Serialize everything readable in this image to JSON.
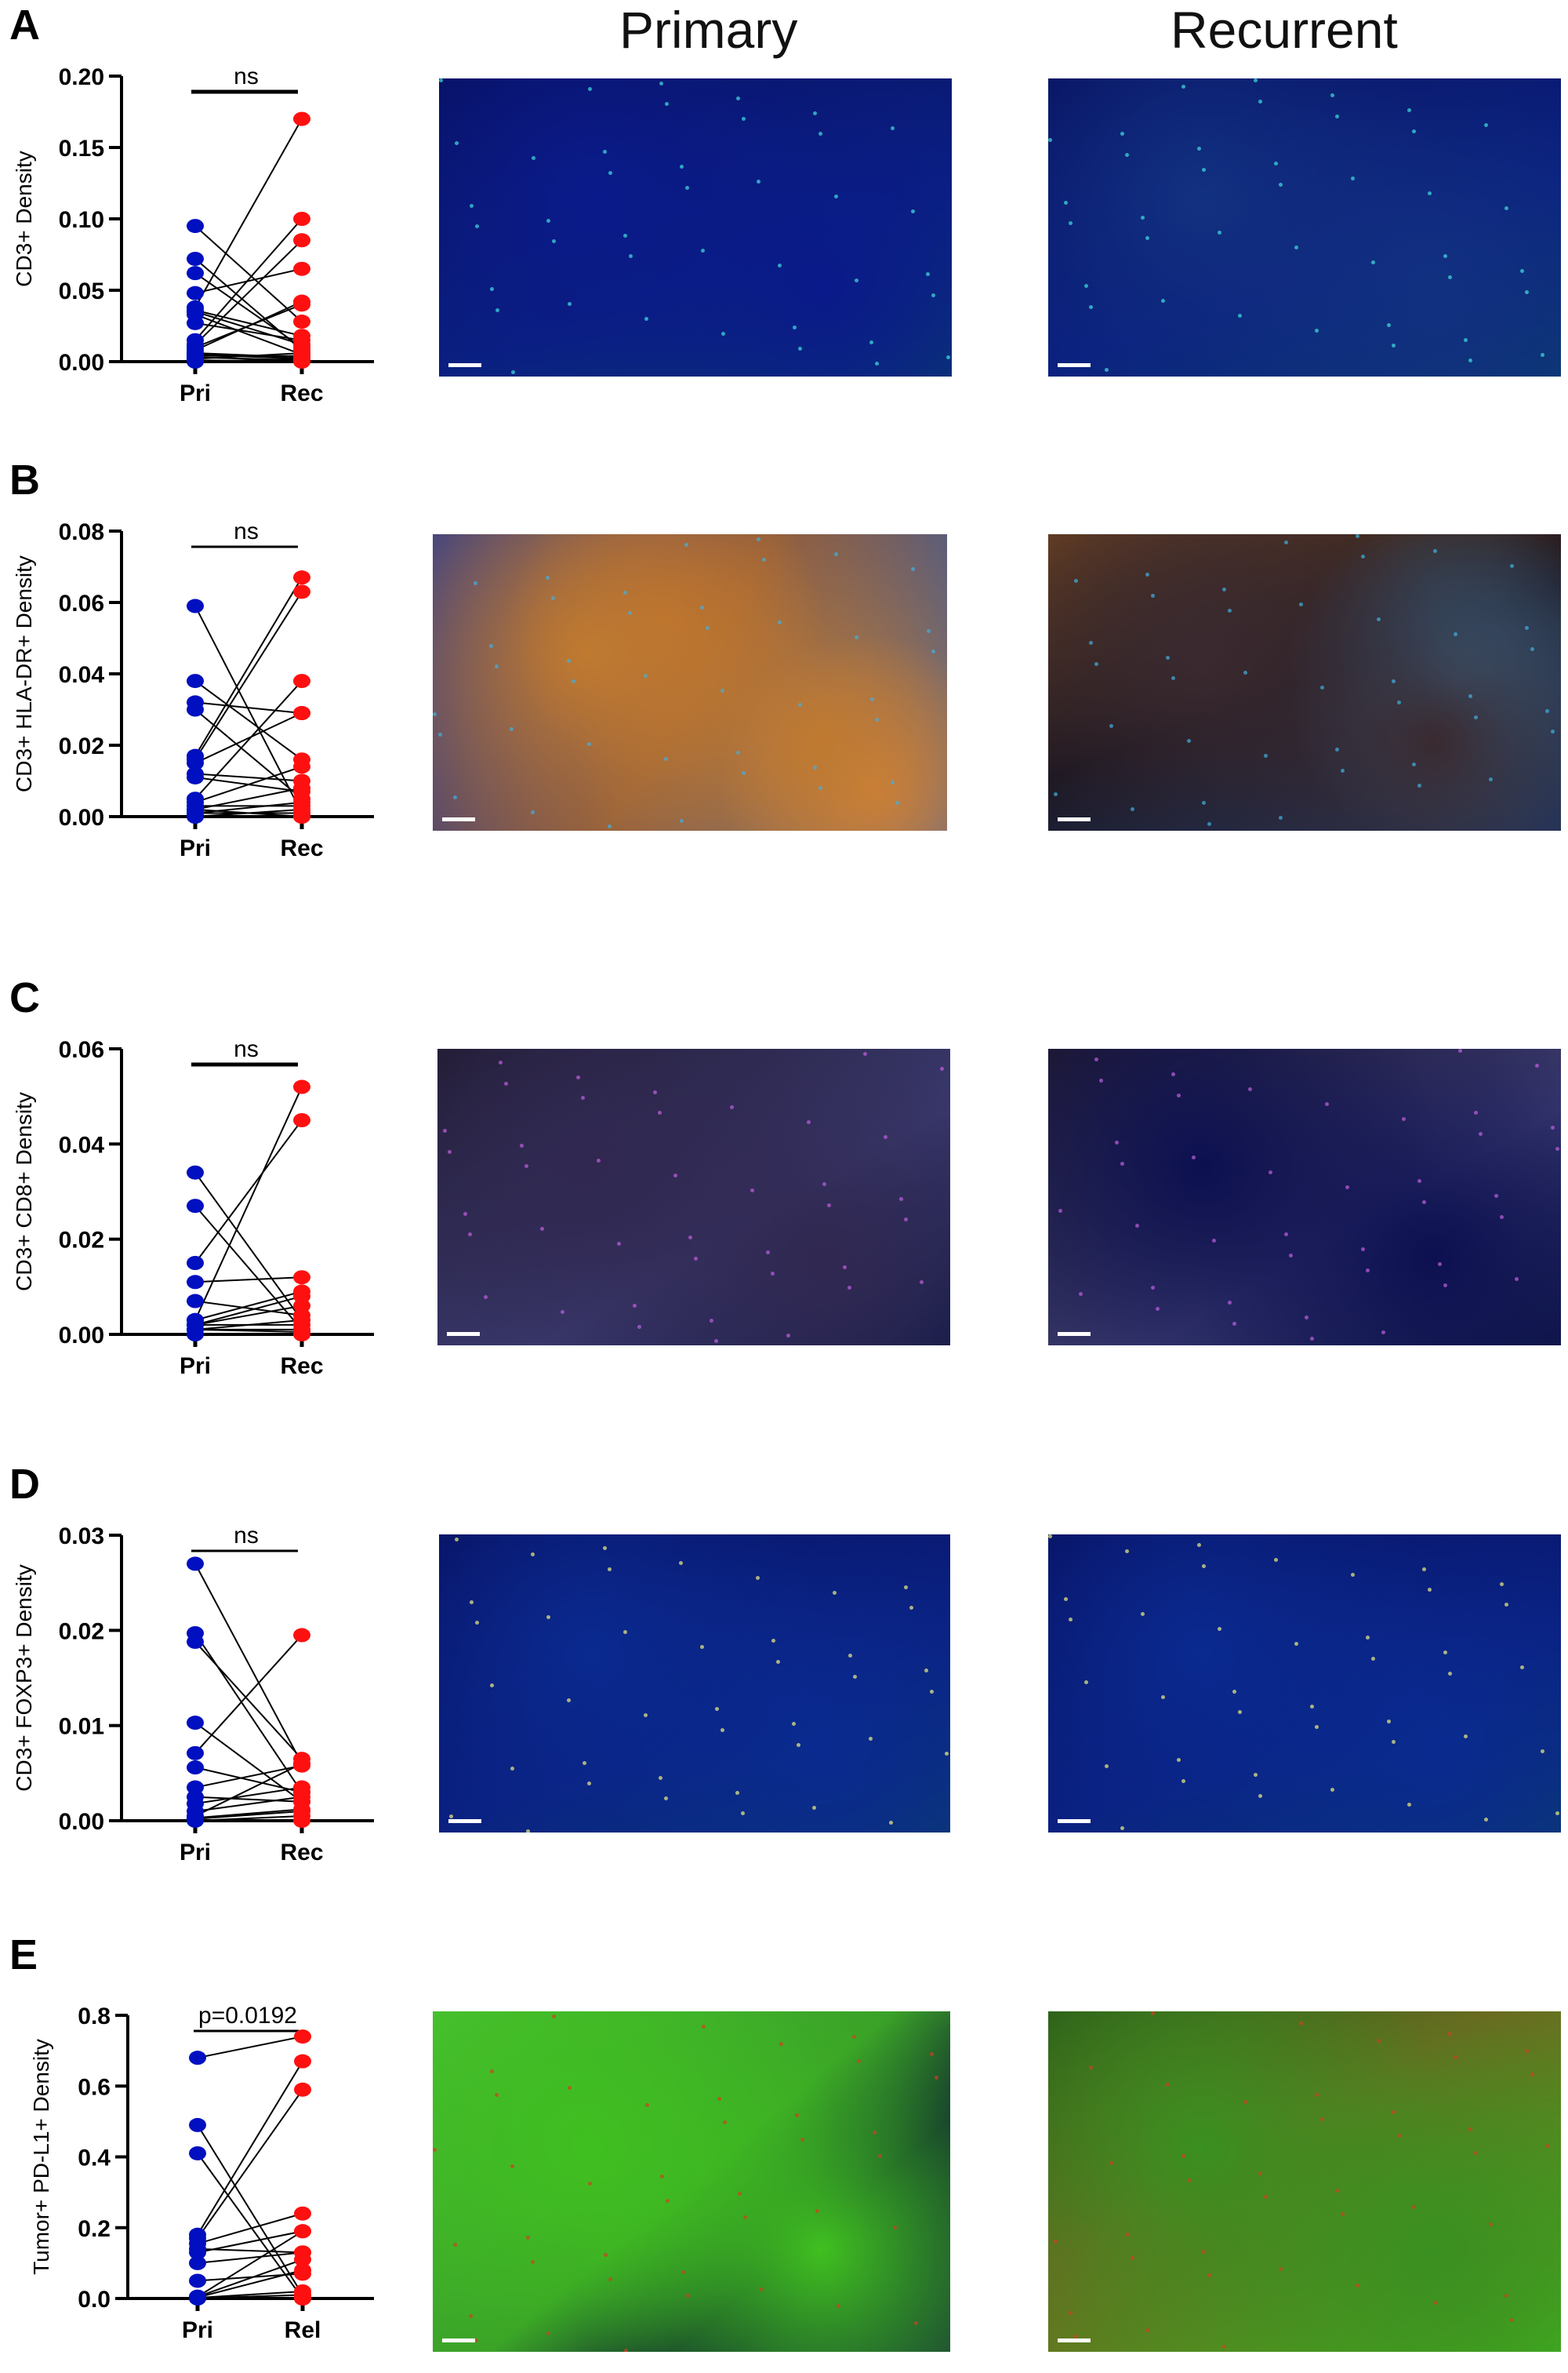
{
  "columns": {
    "primary": "Primary",
    "recurrent": "Recurrent"
  },
  "colors": {
    "primary_points": "#0010c0",
    "recurrent_points": "#ff1010",
    "lines": "#000000"
  },
  "chart_data": [
    {
      "type": "paired-scatter",
      "panel": "A",
      "ylabel": "CD3+ Density",
      "categories": [
        "Pri",
        "Rec"
      ],
      "ylim": [
        0,
        0.2
      ],
      "yticks": [
        "0.00",
        "0.05",
        "0.10",
        "0.15",
        "0.20"
      ],
      "significance": "ns",
      "pairs": [
        [
          0.095,
          0.028
        ],
        [
          0.072,
          0.008
        ],
        [
          0.062,
          0.01
        ],
        [
          0.048,
          0.065
        ],
        [
          0.038,
          0.17
        ],
        [
          0.036,
          0.018
        ],
        [
          0.035,
          0.012
        ],
        [
          0.033,
          0.005
        ],
        [
          0.027,
          0.015
        ],
        [
          0.015,
          0.1
        ],
        [
          0.012,
          0.085
        ],
        [
          0.01,
          0.04
        ],
        [
          0.008,
          0.042
        ],
        [
          0.006,
          0.003
        ],
        [
          0.005,
          0.002
        ],
        [
          0.004,
          0.004
        ],
        [
          0.003,
          0.001
        ],
        [
          0.002,
          0.006
        ],
        [
          0.001,
          0.0
        ],
        [
          0.0,
          0.002
        ]
      ]
    },
    {
      "type": "paired-scatter",
      "panel": "B",
      "ylabel": "CD3+ HLA-DR+ Density",
      "categories": [
        "Pri",
        "Rec"
      ],
      "ylim": [
        0,
        0.08
      ],
      "yticks": [
        "0.00",
        "0.02",
        "0.04",
        "0.06",
        "0.08"
      ],
      "significance": "ns",
      "pairs": [
        [
          0.059,
          0.001
        ],
        [
          0.038,
          0.016
        ],
        [
          0.032,
          0.029
        ],
        [
          0.03,
          0.005
        ],
        [
          0.017,
          0.067
        ],
        [
          0.016,
          0.063
        ],
        [
          0.015,
          0.029
        ],
        [
          0.012,
          0.01
        ],
        [
          0.011,
          0.007
        ],
        [
          0.005,
          0.038
        ],
        [
          0.004,
          0.014
        ],
        [
          0.003,
          0.003
        ],
        [
          0.002,
          0.008
        ],
        [
          0.001,
          0.001
        ],
        [
          0.0,
          0.0
        ],
        [
          0.001,
          0.004
        ],
        [
          0.0,
          0.002
        ],
        [
          0.002,
          0.0
        ]
      ]
    },
    {
      "type": "paired-scatter",
      "panel": "C",
      "ylabel": "CD3+ CD8+ Density",
      "categories": [
        "Pri",
        "Rec"
      ],
      "ylim": [
        0,
        0.06
      ],
      "yticks": [
        "0.00",
        "0.02",
        "0.04",
        "0.06"
      ],
      "significance": "ns",
      "pairs": [
        [
          0.034,
          0.003
        ],
        [
          0.027,
          0.001
        ],
        [
          0.015,
          0.045
        ],
        [
          0.011,
          0.012
        ],
        [
          0.007,
          0.004
        ],
        [
          0.003,
          0.052
        ],
        [
          0.003,
          0.009
        ],
        [
          0.002,
          0.008
        ],
        [
          0.002,
          0.006
        ],
        [
          0.001,
          0.003
        ],
        [
          0.001,
          0.001
        ],
        [
          0.0,
          0.0
        ],
        [
          0.002,
          0.002
        ],
        [
          0.001,
          0.0005
        ]
      ]
    },
    {
      "type": "paired-scatter",
      "panel": "D",
      "ylabel": "CD3+ FOXP3+ Density",
      "categories": [
        "Pri",
        "Rec"
      ],
      "ylim": [
        0,
        0.03
      ],
      "yticks": [
        "0.00",
        "0.01",
        "0.02",
        "0.03"
      ],
      "significance": "ns",
      "pairs": [
        [
          0.027,
          0.006
        ],
        [
          0.0197,
          0.003
        ],
        [
          0.0188,
          0.0065
        ],
        [
          0.0103,
          0.002
        ],
        [
          0.0071,
          0.0195
        ],
        [
          0.0056,
          0.003
        ],
        [
          0.0035,
          0.0058
        ],
        [
          0.0025,
          0.002
        ],
        [
          0.0018,
          0.0035
        ],
        [
          0.001,
          0.0025
        ],
        [
          0.0005,
          0.006
        ],
        [
          0.0002,
          0.001
        ],
        [
          0.0,
          0.0005
        ],
        [
          0.0003,
          0.0012
        ],
        [
          0.0001,
          0.0
        ]
      ]
    },
    {
      "type": "paired-scatter",
      "panel": "E",
      "ylabel": "Tumor+ PD-L1+ Density",
      "categories": [
        "Pri",
        "Rel"
      ],
      "ylim": [
        0,
        0.8
      ],
      "yticks": [
        "0.0",
        "0.2",
        "0.4",
        "0.6",
        "0.8"
      ],
      "significance": "p=0.0192",
      "pairs": [
        [
          0.68,
          0.74
        ],
        [
          0.49,
          0.01
        ],
        [
          0.41,
          0.0
        ],
        [
          0.18,
          0.67
        ],
        [
          0.17,
          0.59
        ],
        [
          0.155,
          0.24
        ],
        [
          0.14,
          0.13
        ],
        [
          0.13,
          0.19
        ],
        [
          0.1,
          0.13
        ],
        [
          0.05,
          0.07
        ],
        [
          0.005,
          0.19
        ],
        [
          0.005,
          0.11
        ],
        [
          0.003,
          0.08
        ],
        [
          0.002,
          0.02
        ],
        [
          0.001,
          0.01
        ],
        [
          0.0,
          0.0
        ]
      ]
    }
  ],
  "micrographs": [
    {
      "panel": "A",
      "primary_tone": "#0a1a8a",
      "recurrent_tone": "#123080",
      "accent": "#40e0e0"
    },
    {
      "panel": "B",
      "primary_tone": "#c07a30",
      "recurrent_tone": "#3a2a30",
      "accent": "#40b0e0"
    },
    {
      "panel": "C",
      "primary_tone": "#302850",
      "recurrent_tone": "#0c1050",
      "accent": "#c060e0"
    },
    {
      "panel": "D",
      "primary_tone": "#0a2a90",
      "recurrent_tone": "#0a2a90",
      "accent": "#f0f080"
    },
    {
      "panel": "E",
      "primary_tone": "#40c020",
      "recurrent_tone": "#3a9020",
      "accent": "#d04020"
    }
  ]
}
